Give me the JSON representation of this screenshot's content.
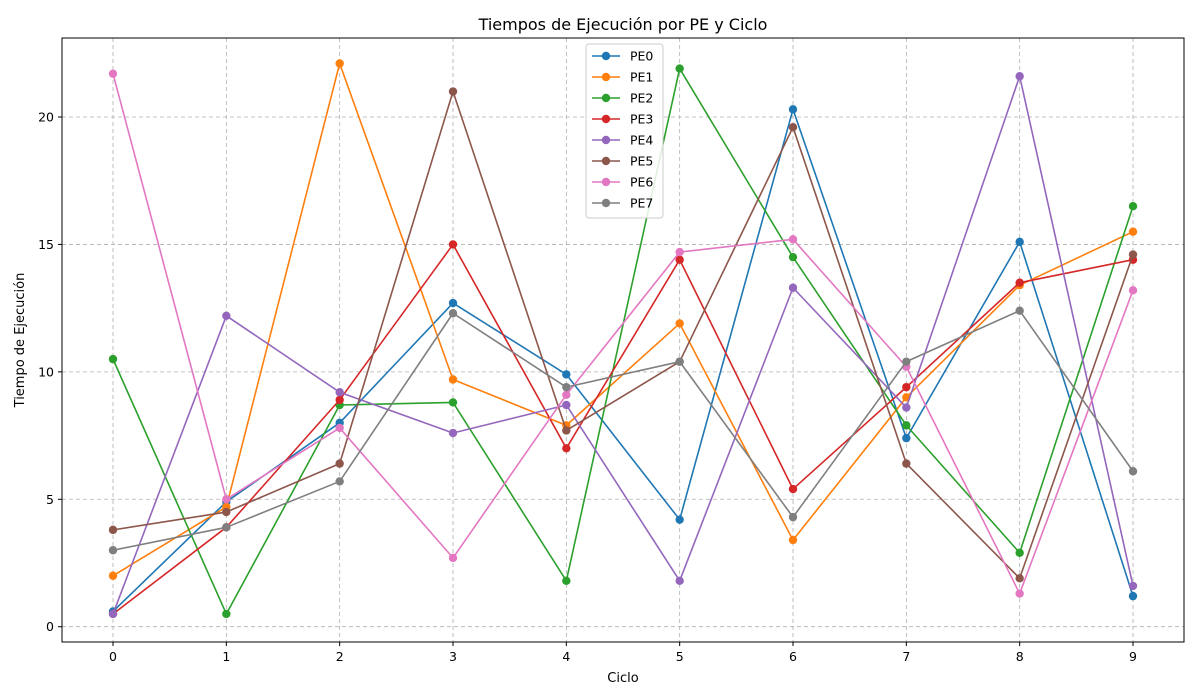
{
  "chart_data": {
    "type": "line",
    "title": "Tiempos de Ejecución por PE y Ciclo",
    "xlabel": "Ciclo",
    "ylabel": "Tiempo de Ejecución",
    "x": [
      0,
      1,
      2,
      3,
      4,
      5,
      6,
      7,
      8,
      9
    ],
    "x_ticks": [
      "0",
      "1",
      "2",
      "3",
      "4",
      "5",
      "6",
      "7",
      "8",
      "9"
    ],
    "y_ticks": [
      "0",
      "5",
      "10",
      "15",
      "20"
    ],
    "xlim": [
      -0.45,
      9.45
    ],
    "ylim": [
      -0.6,
      23.1
    ],
    "grid": true,
    "legend_position": "top-center",
    "series": [
      {
        "name": "PE0",
        "color": "#1f77b4",
        "values": [
          0.6,
          4.9,
          8.0,
          12.7,
          9.9,
          4.2,
          20.3,
          7.4,
          15.1,
          1.2
        ]
      },
      {
        "name": "PE1",
        "color": "#ff7f0e",
        "values": [
          2.0,
          4.7,
          22.1,
          9.7,
          7.9,
          11.9,
          3.4,
          9.0,
          13.4,
          15.5
        ]
      },
      {
        "name": "PE2",
        "color": "#2ca02c",
        "values": [
          10.5,
          0.5,
          8.7,
          8.8,
          1.8,
          21.9,
          14.5,
          7.9,
          2.9,
          16.5
        ]
      },
      {
        "name": "PE3",
        "color": "#d62728",
        "values": [
          0.5,
          3.9,
          8.9,
          15.0,
          7.0,
          14.4,
          5.4,
          9.4,
          13.5,
          14.4
        ]
      },
      {
        "name": "PE4",
        "color": "#9467bd",
        "values": [
          0.5,
          12.2,
          9.2,
          7.6,
          8.7,
          1.8,
          13.3,
          8.6,
          21.6,
          1.6
        ]
      },
      {
        "name": "PE5",
        "color": "#8c564b",
        "values": [
          3.8,
          4.5,
          6.4,
          21.0,
          7.7,
          10.4,
          19.6,
          6.4,
          1.9,
          14.6
        ]
      },
      {
        "name": "PE6",
        "color": "#e377c2",
        "values": [
          21.7,
          5.0,
          7.8,
          2.7,
          9.1,
          14.7,
          15.2,
          10.2,
          1.3,
          13.2
        ]
      },
      {
        "name": "PE7",
        "color": "#7f7f7f",
        "values": [
          3.0,
          3.9,
          5.7,
          12.3,
          9.4,
          10.4,
          4.3,
          10.4,
          12.4,
          6.1
        ]
      }
    ]
  }
}
